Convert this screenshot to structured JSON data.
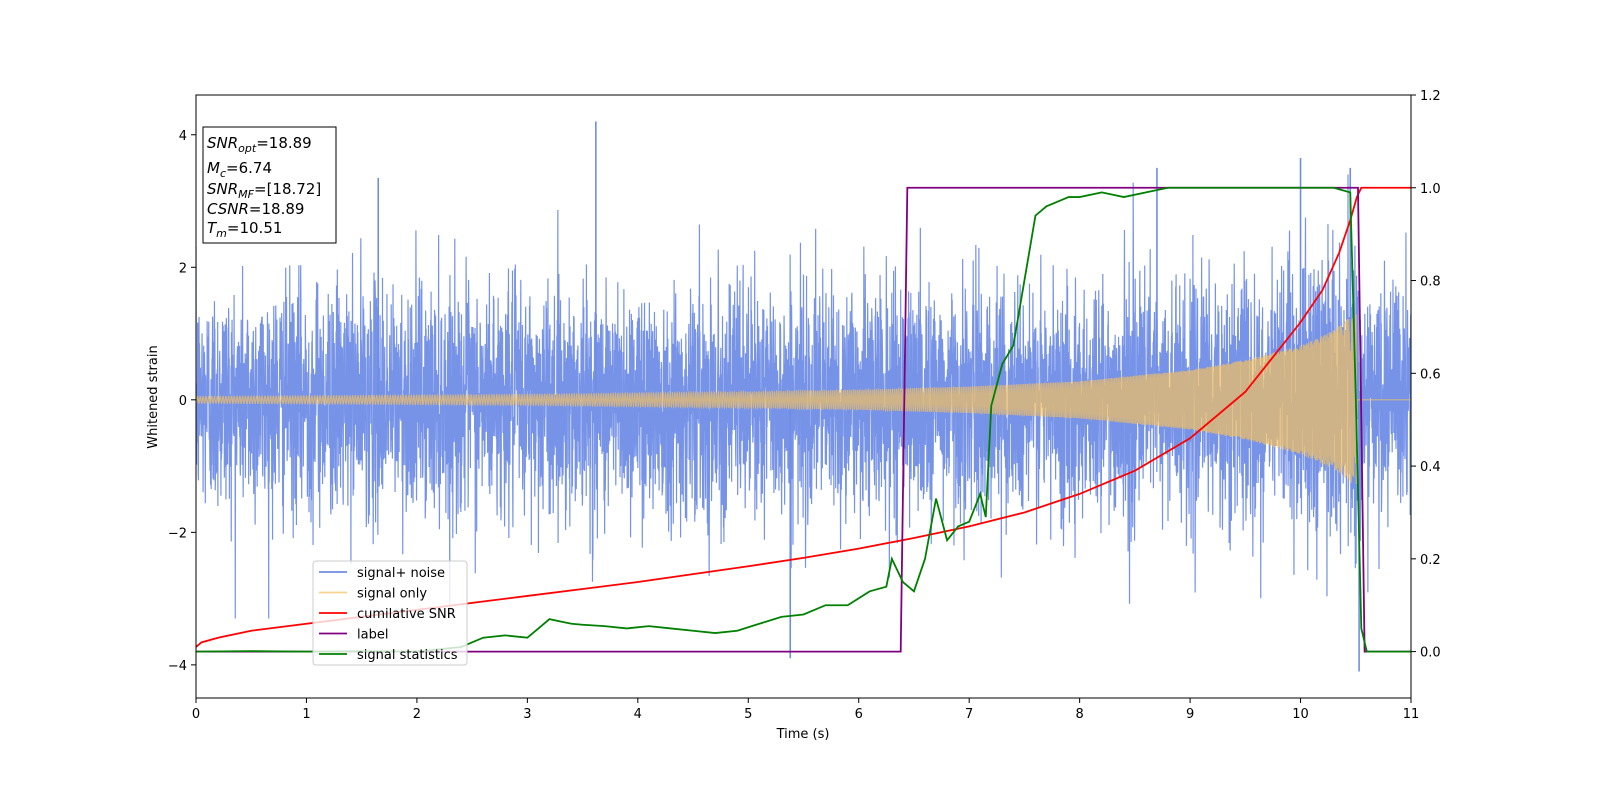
{
  "chart_data": {
    "type": "line",
    "xlabel": "Time (s)",
    "ylabel": "Whitened strain",
    "xlim": [
      0,
      11
    ],
    "ylim_left": [
      -4.5,
      4.6
    ],
    "ylim_right": [
      -0.1,
      1.2
    ],
    "x_ticks": [
      0,
      1,
      2,
      3,
      4,
      5,
      6,
      7,
      8,
      9,
      10,
      11
    ],
    "y_ticks_left": [
      -4,
      -2,
      0,
      2,
      4
    ],
    "y_ticks_right": [
      0.0,
      0.2,
      0.4,
      0.6,
      0.8,
      1.0,
      1.2
    ],
    "y_tick_labels_left": [
      "−4",
      "−2",
      "0",
      "2",
      "4"
    ],
    "y_tick_labels_right": [
      "0.0",
      "0.2",
      "0.4",
      "0.6",
      "0.8",
      "1.0",
      "1.2"
    ],
    "legend_position": "lower-left",
    "grid": false,
    "annotation": {
      "lines": [
        {
          "sym": "SNR",
          "sub": "opt",
          "val": "=18.89"
        },
        {
          "sym": "M",
          "sub": "c",
          "val": "=6.74"
        },
        {
          "sym": "SNR",
          "sub": "MF",
          "val": "=[18.72]"
        },
        {
          "sym": "CSNR",
          "sub": "",
          "val": "=18.89"
        },
        {
          "sym": "T",
          "sub": "m",
          "val": "=10.51"
        }
      ]
    },
    "series": [
      {
        "name": "signal+ noise",
        "axis": "left",
        "color": "#6f8de6",
        "kind": "noise",
        "note": "gaussian noise plus chirp, sigma ~0.9, spikes to about 4.2 at t=3.62 and -4.1 at t=10.53",
        "x_range": [
          0,
          11
        ],
        "spikes": [
          [
            3.62,
            4.2
          ],
          [
            5.38,
            -3.9
          ],
          [
            10.53,
            -4.1
          ],
          [
            10.0,
            3.65
          ],
          [
            8.7,
            3.5
          ],
          [
            10.45,
            3.5
          ],
          [
            1.65,
            3.35
          ]
        ]
      },
      {
        "name": "signal only",
        "axis": "left",
        "color": "#f5c060",
        "kind": "chirp",
        "note": "inspiral chirp, amplitude growing to ~1.3 at merger",
        "merger_time": 10.51,
        "envelope": [
          [
            0,
            0.05
          ],
          [
            1,
            0.06
          ],
          [
            2,
            0.07
          ],
          [
            3,
            0.08
          ],
          [
            4,
            0.1
          ],
          [
            5,
            0.12
          ],
          [
            6,
            0.15
          ],
          [
            7,
            0.2
          ],
          [
            8,
            0.28
          ],
          [
            9,
            0.45
          ],
          [
            9.5,
            0.6
          ],
          [
            10,
            0.82
          ],
          [
            10.3,
            1.05
          ],
          [
            10.45,
            1.25
          ],
          [
            10.51,
            1.3
          ]
        ]
      },
      {
        "name": "cumilative SNR",
        "axis": "right",
        "color": "#ff0000",
        "x": [
          0,
          0.05,
          0.2,
          0.5,
          1,
          1.5,
          2,
          2.5,
          3,
          3.5,
          4,
          4.5,
          5,
          5.5,
          6,
          6.5,
          7,
          7.5,
          8,
          8.5,
          9,
          9.5,
          10,
          10.2,
          10.35,
          10.45,
          10.51,
          10.55,
          11
        ],
        "y": [
          0.01,
          0.02,
          0.03,
          0.045,
          0.06,
          0.075,
          0.09,
          0.105,
          0.12,
          0.135,
          0.15,
          0.167,
          0.184,
          0.202,
          0.222,
          0.245,
          0.27,
          0.3,
          0.34,
          0.39,
          0.46,
          0.56,
          0.71,
          0.78,
          0.86,
          0.93,
          0.98,
          1.0,
          1.0
        ]
      },
      {
        "name": "label",
        "axis": "right",
        "color": "#800080",
        "x": [
          0,
          6.38,
          6.44,
          10.52,
          10.58,
          11
        ],
        "y": [
          0,
          0,
          1,
          1,
          0,
          0
        ]
      },
      {
        "name": "signal statistics",
        "axis": "right",
        "color": "#008000",
        "x": [
          0,
          0.5,
          1,
          1.5,
          2,
          2.4,
          2.6,
          2.8,
          3,
          3.1,
          3.2,
          3.3,
          3.4,
          3.5,
          3.7,
          3.9,
          4.1,
          4.3,
          4.5,
          4.7,
          4.9,
          5.1,
          5.3,
          5.5,
          5.7,
          5.9,
          6.1,
          6.25,
          6.3,
          6.4,
          6.5,
          6.6,
          6.7,
          6.8,
          6.9,
          7.0,
          7.1,
          7.15,
          7.2,
          7.3,
          7.4,
          7.5,
          7.6,
          7.7,
          7.8,
          7.9,
          8.0,
          8.2,
          8.4,
          8.6,
          8.8,
          9.0,
          9.5,
          10.0,
          10.3,
          10.45,
          10.5,
          10.55,
          10.6,
          11
        ],
        "y": [
          0,
          0.001,
          0.0,
          0.001,
          0.0,
          0.01,
          0.03,
          0.035,
          0.03,
          0.05,
          0.07,
          0.065,
          0.06,
          0.058,
          0.055,
          0.05,
          0.055,
          0.05,
          0.045,
          0.04,
          0.045,
          0.06,
          0.075,
          0.08,
          0.1,
          0.1,
          0.13,
          0.14,
          0.2,
          0.15,
          0.13,
          0.2,
          0.33,
          0.24,
          0.27,
          0.28,
          0.34,
          0.29,
          0.53,
          0.62,
          0.66,
          0.8,
          0.94,
          0.96,
          0.97,
          0.98,
          0.98,
          0.99,
          0.98,
          0.99,
          1.0,
          1.0,
          1.0,
          1.0,
          1.0,
          0.99,
          0.55,
          0.05,
          0.0,
          0.0
        ]
      }
    ]
  }
}
